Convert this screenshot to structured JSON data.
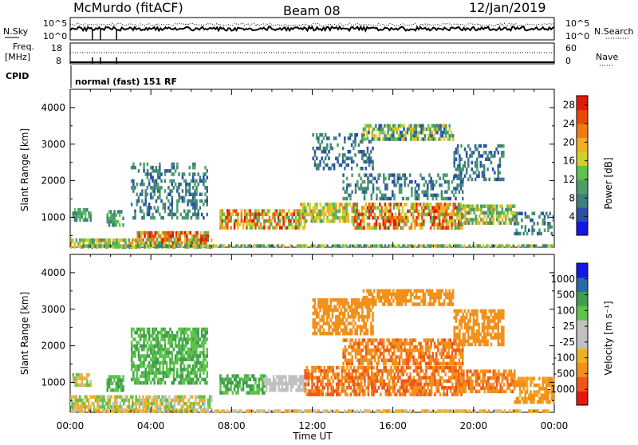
{
  "header": {
    "station": "McMurdo (fitACF)",
    "beam": "Beam 08",
    "date": "12/Jan/2019"
  },
  "strip": {
    "nsky_label": "N.Sky",
    "nsky_ticks": [
      "10^5",
      "10^0"
    ],
    "nsearch_label": "N.Search",
    "nsearch_ticks": [
      "10^5",
      "10^0"
    ],
    "freq_label_1": "Freq.",
    "freq_label_2": "[MHz]",
    "freq_ticks": [
      "18",
      "8"
    ],
    "nave_label": "Nave",
    "nave_ticks": [
      "60",
      "0"
    ],
    "cpid_label": "CPID",
    "cpid_value": "normal (fast) 151 RF"
  },
  "colors": {
    "power_scale": [
      "#1515e8",
      "#2a4fa8",
      "#3f7f7c",
      "#4f9e6a",
      "#5fc24a",
      "#cfd12a",
      "#f0b020",
      "#f07c10",
      "#e84a08",
      "#e31a0a"
    ],
    "velocity_scale": [
      "#e31a0a",
      "#f2561a",
      "#f2901a",
      "#f0b020",
      "#c0c0c0",
      "#c0c0c0",
      "#5fc24a",
      "#3f9e50",
      "#2a6aa8",
      "#1515e8"
    ]
  },
  "chart_data": [
    {
      "type": "heatmap",
      "name": "power",
      "ylabel": "Slant Range [km]",
      "xlabel": "Time UT",
      "x_ticks": [
        "00:00",
        "04:00",
        "08:00",
        "12:00",
        "16:00",
        "20:00",
        "00:00"
      ],
      "xlim_hours": [
        0,
        24
      ],
      "y_ticks": [
        1000,
        2000,
        3000,
        4000
      ],
      "ylim": [
        180,
        4500
      ],
      "colorbar_label": "Power [dB]",
      "colorbar_ticks": [
        "4",
        "8",
        "12",
        "16",
        "20",
        "24",
        "28"
      ],
      "colorbar_range": [
        0,
        30
      ],
      "regions": [
        {
          "t0": 0.0,
          "t1": 7.0,
          "r0": 200,
          "r1": 420,
          "v0": 8,
          "v1": 22
        },
        {
          "t0": 3.3,
          "t1": 6.8,
          "r0": 300,
          "r1": 620,
          "v0": 10,
          "v1": 30
        },
        {
          "t0": 0.0,
          "t1": 24.0,
          "r0": 180,
          "r1": 260,
          "v0": 6,
          "v1": 20
        },
        {
          "t0": 0.1,
          "t1": 1.0,
          "r0": 950,
          "r1": 1250,
          "v0": 6,
          "v1": 14
        },
        {
          "t0": 1.8,
          "t1": 2.6,
          "r0": 800,
          "r1": 1200,
          "v0": 6,
          "v1": 14
        },
        {
          "t0": 7.4,
          "t1": 11.6,
          "r0": 760,
          "r1": 1220,
          "v0": 10,
          "v1": 30
        },
        {
          "t0": 11.4,
          "t1": 14.2,
          "r0": 900,
          "r1": 1400,
          "v0": 10,
          "v1": 22
        },
        {
          "t0": 14.0,
          "t1": 19.4,
          "r0": 700,
          "r1": 1400,
          "v0": 10,
          "v1": 30
        },
        {
          "t0": 19.2,
          "t1": 22.0,
          "r0": 850,
          "r1": 1350,
          "v0": 8,
          "v1": 20
        },
        {
          "t0": 22.0,
          "t1": 24.0,
          "r0": 600,
          "r1": 1150,
          "v0": 4,
          "v1": 12
        },
        {
          "t0": 13.5,
          "t1": 19.5,
          "r0": 1500,
          "r1": 2200,
          "v0": 4,
          "v1": 12
        },
        {
          "t0": 12.0,
          "t1": 15.0,
          "r0": 2300,
          "r1": 3300,
          "v0": 4,
          "v1": 10
        },
        {
          "t0": 14.5,
          "t1": 19.0,
          "r0": 3100,
          "r1": 3550,
          "v0": 4,
          "v1": 20
        },
        {
          "t0": 19.0,
          "t1": 21.5,
          "r0": 2000,
          "r1": 3000,
          "v0": 4,
          "v1": 10
        },
        {
          "t0": 3.0,
          "t1": 6.8,
          "r0": 1000,
          "r1": 2500,
          "v0": 4,
          "v1": 12
        }
      ]
    },
    {
      "type": "heatmap",
      "name": "velocity",
      "ylabel": "Slant Range [km]",
      "xlabel": "Time UT",
      "x_ticks": [
        "00:00",
        "04:00",
        "08:00",
        "12:00",
        "16:00",
        "20:00",
        "00:00"
      ],
      "xlim_hours": [
        0,
        24
      ],
      "y_ticks": [
        1000,
        2000,
        3000,
        4000
      ],
      "ylim": [
        180,
        4500
      ],
      "colorbar_label": "Velocity [m s⁻¹]",
      "colorbar_ticks": [
        "1000",
        "500",
        "100",
        "25",
        "-25",
        "-100",
        "-500",
        "-1000"
      ],
      "regions": [
        {
          "t0": 0.0,
          "t1": 7.0,
          "r0": 200,
          "r1": 650,
          "v0": -100,
          "v1": 100
        },
        {
          "t0": 0.0,
          "t1": 24.0,
          "r0": 180,
          "r1": 260,
          "v0": -120,
          "v1": 20
        },
        {
          "t0": 0.1,
          "t1": 1.0,
          "r0": 950,
          "r1": 1250,
          "v0": -80,
          "v1": 40
        },
        {
          "t0": 1.8,
          "t1": 2.6,
          "r0": 800,
          "r1": 1200,
          "v0": 25,
          "v1": 150
        },
        {
          "t0": 7.4,
          "t1": 9.6,
          "r0": 760,
          "r1": 1220,
          "v0": 25,
          "v1": 200
        },
        {
          "t0": 9.6,
          "t1": 11.8,
          "r0": 780,
          "r1": 1200,
          "v0": -25,
          "v1": 25
        },
        {
          "t0": 11.6,
          "t1": 19.4,
          "r0": 700,
          "r1": 1450,
          "v0": -450,
          "v1": -120
        },
        {
          "t0": 19.2,
          "t1": 22.0,
          "r0": 800,
          "r1": 1350,
          "v0": -400,
          "v1": -100
        },
        {
          "t0": 22.0,
          "t1": 24.0,
          "r0": 500,
          "r1": 1150,
          "v0": -200,
          "v1": -60
        },
        {
          "t0": 13.5,
          "t1": 19.5,
          "r0": 1500,
          "r1": 2200,
          "v0": -400,
          "v1": -100
        },
        {
          "t0": 12.0,
          "t1": 15.0,
          "r0": 2300,
          "r1": 3300,
          "v0": -300,
          "v1": -100
        },
        {
          "t0": 14.5,
          "t1": 19.0,
          "r0": 3100,
          "r1": 3550,
          "v0": -300,
          "v1": -100
        },
        {
          "t0": 19.0,
          "t1": 21.5,
          "r0": 2000,
          "r1": 3000,
          "v0": -300,
          "v1": -100
        },
        {
          "t0": 3.0,
          "t1": 6.8,
          "r0": 1000,
          "r1": 2500,
          "v0": 25,
          "v1": 150
        }
      ]
    }
  ]
}
